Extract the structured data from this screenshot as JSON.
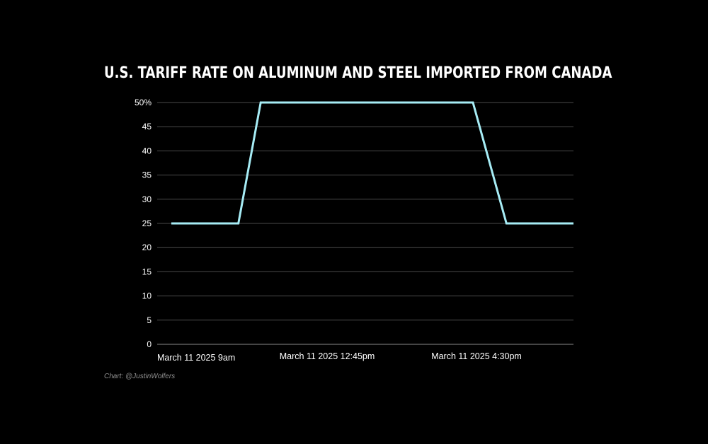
{
  "chart_data": {
    "type": "line",
    "title": "U.S. TARIFF RATE ON ALUMINUM AND STEEL IMPORTED FROM CANADA",
    "xlabel": "",
    "ylabel": "",
    "x_tick_labels": [
      "March 11 2025 9am",
      "March 11 2025 12:45pm",
      "March 11 2025 4:30pm"
    ],
    "y_tick_labels": [
      "0",
      "5",
      "10",
      "15",
      "20",
      "25",
      "30",
      "35",
      "40",
      "45",
      "50%"
    ],
    "ylim": [
      0,
      50
    ],
    "grid": "horizontal",
    "series": [
      {
        "color": "#a6ecf5",
        "points": [
          {
            "t": "9:00am",
            "y": 25
          },
          {
            "t": "10:30am",
            "y": 25
          },
          {
            "t": "11:00am",
            "y": 50
          },
          {
            "t": "3:45pm",
            "y": 50
          },
          {
            "t": "4:30pm",
            "y": 25
          },
          {
            "t": "6:00pm",
            "y": 25
          }
        ]
      }
    ]
  },
  "source": "Chart: @JustinWolfers"
}
